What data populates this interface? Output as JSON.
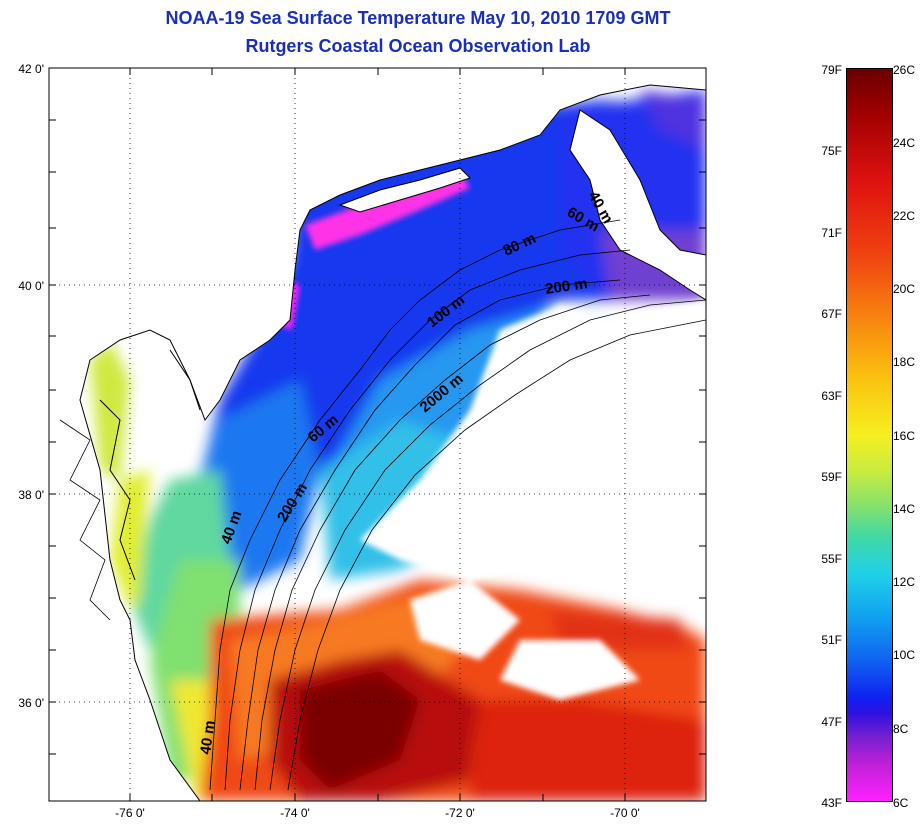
{
  "title": {
    "line1": "NOAA-19 Sea Surface Temperature May 10, 2010 1709 GMT",
    "line2": "Rutgers Coastal Ocean Observation Lab"
  },
  "map": {
    "lat_ticks": [
      "42 0'",
      "40 0'",
      "38 0'",
      "36 0'"
    ],
    "lon_ticks": [
      "-76 0'",
      "-74 0'",
      "-72 0'",
      "-70 0'"
    ],
    "contour_labels": [
      "40 m",
      "60 m",
      "80 m",
      "100 m",
      "200 m",
      "2000 m",
      "60 m",
      "200 m",
      "40 m",
      "40 m"
    ],
    "land_color": "#ffffff",
    "cloud_color": "#ffffff"
  },
  "colorbar": {
    "fahrenheit": [
      "79F",
      "75F",
      "71F",
      "67F",
      "63F",
      "59F",
      "55F",
      "51F",
      "47F",
      "43F"
    ],
    "celsius": [
      "26C",
      "24C",
      "22C",
      "20C",
      "18C",
      "16C",
      "14C",
      "12C",
      "10C",
      "8C",
      "6C"
    ]
  }
}
